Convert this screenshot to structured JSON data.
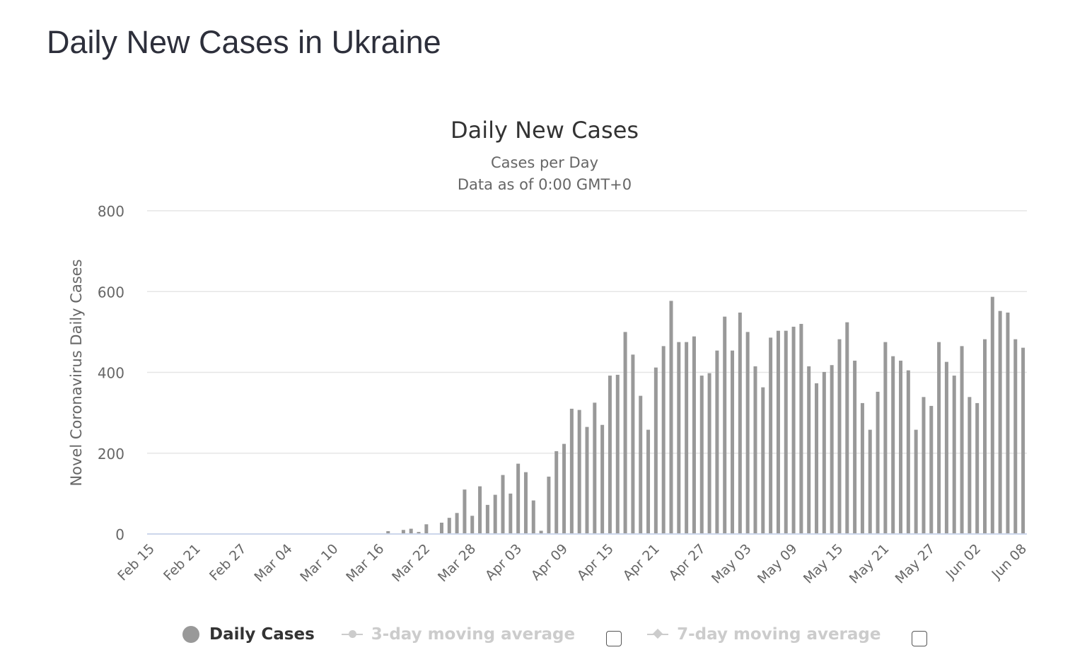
{
  "page_title": "Daily New Cases in Ukraine",
  "colors": {
    "bar": "#999999",
    "grid": "#e6e6e6",
    "baseline": "#ccd6eb",
    "text": "#666666"
  },
  "legend": {
    "items": [
      {
        "label": "Daily Cases",
        "active": true,
        "icon": "circle-icon"
      },
      {
        "label": "3-day moving average",
        "active": false,
        "icon": "line-circle-icon"
      },
      {
        "label": "7-day moving average",
        "active": false,
        "icon": "line-diamond-icon"
      }
    ]
  },
  "chart_data": {
    "type": "bar",
    "title": "Daily New Cases",
    "subtitle": "Cases per Day",
    "subtitle2": "Data as of 0:00 GMT+0",
    "xlabel": "",
    "ylabel": "Novel Coronavirus Daily Cases",
    "ylim": [
      0,
      800
    ],
    "yticks": [
      0,
      200,
      400,
      600,
      800
    ],
    "x_start": "2020-02-15",
    "x_tick_labels": [
      "Feb 15",
      "Feb 21",
      "Feb 27",
      "Mar 04",
      "Mar 10",
      "Mar 16",
      "Mar 22",
      "Mar 28",
      "Apr 03",
      "Apr 09",
      "Apr 15",
      "Apr 21",
      "Apr 27",
      "May 03",
      "May 09",
      "May 15",
      "May 21",
      "May 27",
      "Jun 02",
      "Jun 08"
    ],
    "x_tick_every_days": 6,
    "grid": true,
    "legend_position": "bottom",
    "series": [
      {
        "name": "Daily Cases",
        "values": [
          0,
          0,
          0,
          0,
          0,
          0,
          0,
          0,
          0,
          0,
          0,
          0,
          0,
          0,
          0,
          0,
          0,
          0,
          0,
          0,
          0,
          0,
          0,
          0,
          0,
          0,
          0,
          0,
          0,
          0,
          0,
          7,
          0,
          10,
          13,
          5,
          24,
          0,
          28,
          40,
          52,
          110,
          45,
          118,
          72,
          97,
          146,
          100,
          174,
          153,
          83,
          8,
          142,
          205,
          223,
          310,
          307,
          265,
          325,
          270,
          392,
          394,
          500,
          444,
          342,
          258,
          412,
          465,
          577,
          475,
          475,
          489,
          392,
          398,
          454,
          538,
          454,
          548,
          500,
          415,
          363,
          486,
          503,
          503,
          513,
          520,
          415,
          373,
          401,
          418,
          482,
          524,
          429,
          324,
          258,
          352,
          475,
          440,
          429,
          405,
          258,
          339,
          317,
          475,
          426,
          392,
          465,
          339,
          324,
          482,
          587,
          552,
          548,
          482,
          461
        ]
      }
    ]
  }
}
